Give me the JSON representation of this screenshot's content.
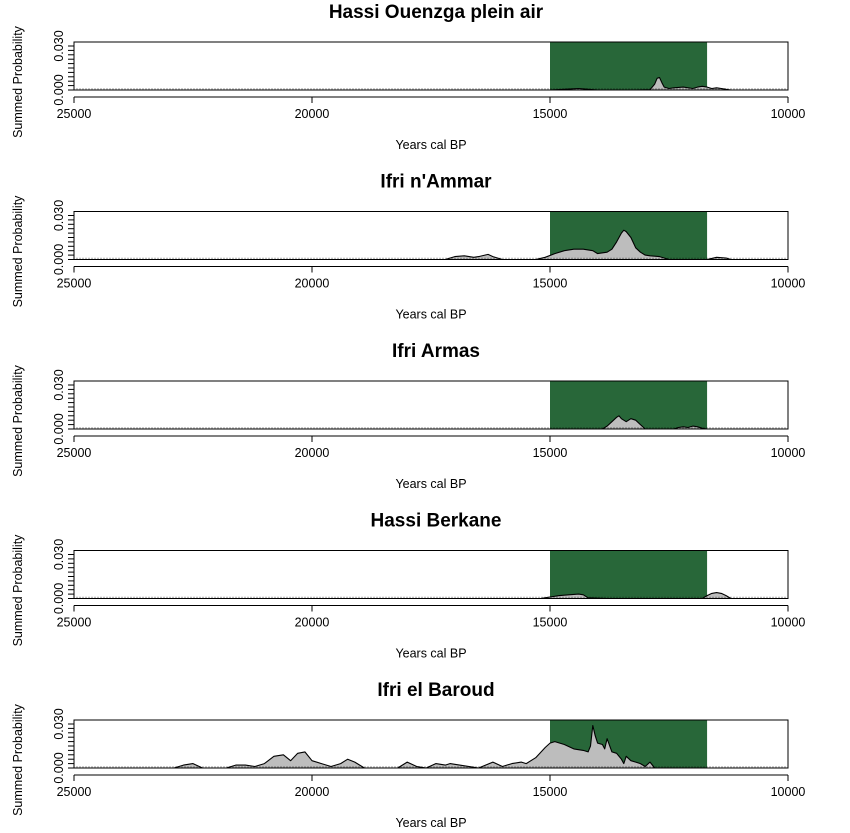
{
  "chart_data": [
    {
      "type": "area",
      "title": "Hassi Ouenzga plein air",
      "xlabel": "Years cal BP",
      "ylabel": "Summed Probability",
      "xlim": [
        25000,
        10000
      ],
      "ylim": [
        0,
        0.03
      ],
      "xticks": [
        "25000",
        "20000",
        "15000",
        "10000"
      ],
      "yticks": [
        "0.000",
        "0.030"
      ],
      "highlight": {
        "from": 15000,
        "to": 11700,
        "color": "#286739"
      },
      "fill_color": "#bdbdbd",
      "series": [
        {
          "x": [
            15000,
            14700,
            14400,
            14200,
            14000,
            13600,
            13200,
            12900,
            12800,
            12750,
            12700,
            12650,
            12600,
            12500,
            12400,
            12200,
            12000,
            11900,
            11800,
            11700,
            11600,
            11500,
            11400,
            11300,
            11200,
            10000
          ],
          "y": [
            0,
            0.0005,
            0.001,
            0.0005,
            0,
            0,
            0,
            0.0002,
            0.004,
            0.008,
            0.0085,
            0.005,
            0.002,
            0.001,
            0.0015,
            0.002,
            0.001,
            0.002,
            0.0025,
            0.002,
            0.001,
            0.0015,
            0.001,
            0.0005,
            0,
            0
          ]
        }
      ]
    },
    {
      "type": "area",
      "title": "Ifri n'Ammar",
      "xlabel": "Years cal BP",
      "ylabel": "Summed Probability",
      "xlim": [
        25000,
        10000
      ],
      "ylim": [
        0,
        0.03
      ],
      "xticks": [
        "25000",
        "20000",
        "15000",
        "10000"
      ],
      "yticks": [
        "0.000",
        "0.030"
      ],
      "highlight": {
        "from": 15000,
        "to": 11700,
        "color": "#286739"
      },
      "fill_color": "#bdbdbd",
      "series": [
        {
          "x": [
            17200,
            17000,
            16800,
            16600,
            16500,
            16300,
            16200,
            16000,
            15300,
            15100,
            14900,
            14700,
            14500,
            14300,
            14100,
            14000,
            13800,
            13700,
            13600,
            13500,
            13450,
            13400,
            13300,
            13200,
            13100,
            13000,
            12900,
            12700,
            12500,
            11700,
            11500,
            11300,
            11200,
            10000
          ],
          "y": [
            0,
            0.002,
            0.0025,
            0.0015,
            0.002,
            0.0035,
            0.002,
            0,
            0,
            0.0015,
            0.004,
            0.006,
            0.007,
            0.007,
            0.006,
            0.004,
            0.005,
            0.007,
            0.012,
            0.018,
            0.02,
            0.019,
            0.015,
            0.008,
            0.005,
            0.003,
            0.0025,
            0.002,
            0,
            0,
            0.0015,
            0.001,
            0,
            0
          ]
        }
      ]
    },
    {
      "type": "area",
      "title": "Ifri Armas",
      "xlabel": "Years cal BP",
      "ylabel": "Summed Probability",
      "xlim": [
        25000,
        10000
      ],
      "ylim": [
        0,
        0.03
      ],
      "xticks": [
        "25000",
        "20000",
        "15000",
        "10000"
      ],
      "yticks": [
        "0.000",
        "0.030"
      ],
      "highlight": {
        "from": 15000,
        "to": 11700,
        "color": "#286739"
      },
      "fill_color": "#bdbdbd",
      "series": [
        {
          "x": [
            13900,
            13800,
            13700,
            13600,
            13550,
            13500,
            13400,
            13300,
            13200,
            13100,
            13000,
            12400,
            12300,
            12200,
            12100,
            12000,
            11900,
            11800,
            11700,
            10000
          ],
          "y": [
            0,
            0.002,
            0.005,
            0.008,
            0.009,
            0.007,
            0.005,
            0.007,
            0.006,
            0.003,
            0,
            0,
            0.001,
            0.0015,
            0.001,
            0.002,
            0.0015,
            0.0005,
            0,
            0
          ]
        }
      ]
    },
    {
      "type": "area",
      "title": "Hassi Berkane",
      "xlabel": "Years cal BP",
      "ylabel": "Summed Probability",
      "xlim": [
        25000,
        10000
      ],
      "ylim": [
        0,
        0.03
      ],
      "xticks": [
        "25000",
        "20000",
        "15000",
        "10000"
      ],
      "yticks": [
        "0.000",
        "0.030"
      ],
      "highlight": {
        "from": 15000,
        "to": 11700,
        "color": "#286739"
      },
      "fill_color": "#bdbdbd",
      "series": [
        {
          "x": [
            15200,
            15000,
            14800,
            14600,
            14400,
            14300,
            14200,
            13800,
            11800,
            11700,
            11600,
            11500,
            11400,
            11300,
            11200,
            10000
          ],
          "y": [
            0,
            0.001,
            0.002,
            0.0025,
            0.003,
            0.0025,
            0.0005,
            0,
            0,
            0.002,
            0.0035,
            0.004,
            0.0035,
            0.002,
            0,
            0
          ]
        }
      ]
    },
    {
      "type": "area",
      "title": "Ifri el Baroud",
      "xlabel": "Years cal BP",
      "ylabel": "Summed Probability",
      "xlim": [
        25000,
        10000
      ],
      "ylim": [
        0,
        0.03
      ],
      "xticks": [
        "25000",
        "20000",
        "15000",
        "10000"
      ],
      "yticks": [
        "0.000",
        "0.030"
      ],
      "highlight": {
        "from": 15000,
        "to": 11700,
        "color": "#286739"
      },
      "fill_color": "#bdbdbd",
      "series": [
        {
          "x": [
            22900,
            22700,
            22500,
            22300,
            21800,
            21600,
            21400,
            21200,
            21000,
            20800,
            20600,
            20450,
            20300,
            20150,
            20000,
            19800,
            19600,
            19400,
            19250,
            19100,
            18900,
            18200,
            18000,
            17800,
            17600,
            17400,
            17200,
            17100,
            16900,
            16500,
            16200,
            16000,
            15800,
            15600,
            15500,
            15300,
            15100,
            15000,
            14900,
            14700,
            14500,
            14300,
            14200,
            14150,
            14100,
            14050,
            14000,
            13900,
            13850,
            13800,
            13700,
            13600,
            13500,
            13450,
            13400,
            13300,
            13200,
            13100,
            13000,
            12900,
            12800,
            10000
          ],
          "y": [
            0,
            0.002,
            0.003,
            0,
            0,
            0.002,
            0.002,
            0.001,
            0.003,
            0.008,
            0.009,
            0.005,
            0.01,
            0.011,
            0.005,
            0.003,
            0.001,
            0.003,
            0.006,
            0.004,
            0,
            0,
            0.004,
            0.001,
            0,
            0.003,
            0.002,
            0.003,
            0.002,
            0,
            0.004,
            0.001,
            0.003,
            0.004,
            0.003,
            0.007,
            0.014,
            0.017,
            0.018,
            0.016,
            0.013,
            0.012,
            0.011,
            0.015,
            0.029,
            0.022,
            0.017,
            0.016,
            0.013,
            0.02,
            0.011,
            0.01,
            0.006,
            0.003,
            0.008,
            0.005,
            0.004,
            0.003,
            0.001,
            0.004,
            0,
            0
          ]
        }
      ]
    }
  ]
}
